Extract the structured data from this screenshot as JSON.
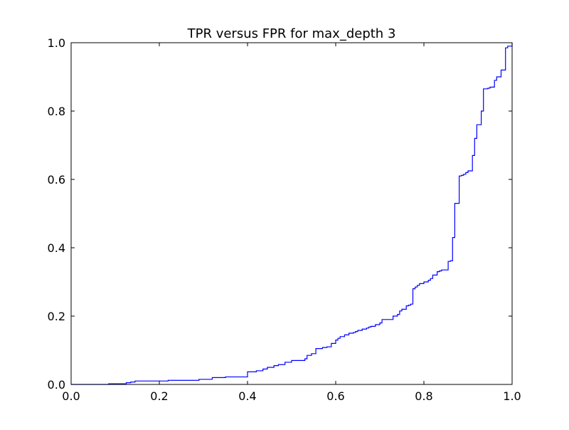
{
  "chart_data": {
    "type": "line",
    "title": "TPR versus FPR for max_depth 3",
    "xlabel": "",
    "ylabel": "",
    "xlim": [
      0.0,
      1.0
    ],
    "ylim": [
      0.0,
      1.0
    ],
    "xticks": [
      "0.0",
      "0.2",
      "0.4",
      "0.6",
      "0.8",
      "1.0"
    ],
    "yticks": [
      "0.0",
      "0.2",
      "0.4",
      "0.6",
      "0.8",
      "1.0"
    ],
    "grid": false,
    "legend": "none",
    "series": [
      {
        "color": "#0000ff",
        "drawstyle": "steps-post",
        "x": [
          0.0,
          0.085,
          0.125,
          0.135,
          0.145,
          0.22,
          0.29,
          0.32,
          0.35,
          0.4,
          0.42,
          0.435,
          0.445,
          0.46,
          0.47,
          0.485,
          0.5,
          0.53,
          0.535,
          0.545,
          0.555,
          0.57,
          0.58,
          0.59,
          0.6,
          0.605,
          0.61,
          0.62,
          0.63,
          0.64,
          0.645,
          0.65,
          0.66,
          0.67,
          0.675,
          0.68,
          0.69,
          0.7,
          0.705,
          0.73,
          0.74,
          0.745,
          0.75,
          0.76,
          0.765,
          0.77,
          0.775,
          0.78,
          0.785,
          0.79,
          0.8,
          0.81,
          0.815,
          0.82,
          0.83,
          0.835,
          0.84,
          0.85,
          0.855,
          0.86,
          0.865,
          0.87,
          0.88,
          0.885,
          0.89,
          0.895,
          0.9,
          0.91,
          0.915,
          0.92,
          0.93,
          0.935,
          0.945,
          0.95,
          0.96,
          0.965,
          0.975,
          0.985,
          0.99,
          1.0
        ],
        "y": [
          0.0,
          0.002,
          0.005,
          0.007,
          0.01,
          0.012,
          0.015,
          0.02,
          0.022,
          0.037,
          0.04,
          0.045,
          0.05,
          0.055,
          0.058,
          0.065,
          0.07,
          0.075,
          0.085,
          0.09,
          0.105,
          0.108,
          0.11,
          0.12,
          0.13,
          0.135,
          0.14,
          0.145,
          0.15,
          0.152,
          0.155,
          0.158,
          0.162,
          0.165,
          0.168,
          0.17,
          0.175,
          0.18,
          0.19,
          0.2,
          0.205,
          0.215,
          0.22,
          0.23,
          0.232,
          0.235,
          0.28,
          0.285,
          0.29,
          0.295,
          0.3,
          0.305,
          0.31,
          0.32,
          0.33,
          0.332,
          0.335,
          0.335,
          0.36,
          0.362,
          0.43,
          0.53,
          0.61,
          0.612,
          0.615,
          0.62,
          0.625,
          0.67,
          0.72,
          0.76,
          0.8,
          0.865,
          0.867,
          0.87,
          0.89,
          0.9,
          0.92,
          0.985,
          0.99,
          1.0
        ]
      }
    ]
  }
}
